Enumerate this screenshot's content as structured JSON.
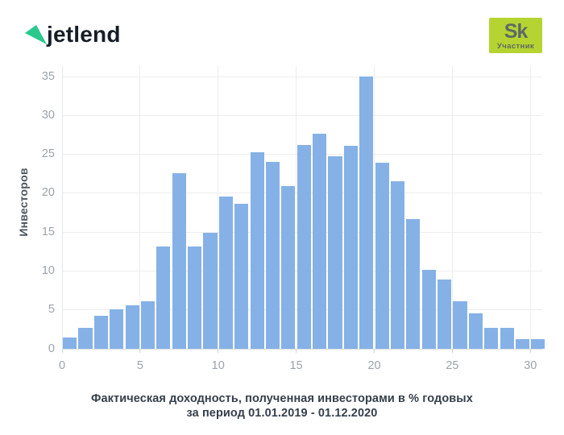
{
  "header": {
    "logo_text": "jetlend",
    "sk_badge": {
      "top": "Sk",
      "bottom": "Участник"
    }
  },
  "colors": {
    "bar": "#85b1e6",
    "grid": "#ededef",
    "axis_line": "#d9dee3",
    "yaxis_line": "#e4e8ec",
    "tick_stub": "#ccd2d8",
    "tick_label": "#9ba3ab",
    "ylabel": "#4b5560",
    "caption": "#343f4b",
    "logo_text": "#151e28",
    "logo_triangle": "#29c98d",
    "sk_badge_bg": "#b5d431",
    "sk_badge_text": "#5e6a64"
  },
  "chart_data": {
    "type": "bar",
    "title": "",
    "xlabel_line1": "Фактическая доходность, полученная инвесторами в % годовых",
    "xlabel_line2": "за период 01.01.2019 - 01.12.2020",
    "ylabel": "Инвесторов",
    "bin_start": 0,
    "bin_width": 1,
    "values": [
      1.5,
      2.7,
      4.2,
      5.1,
      5.6,
      6.1,
      13.2,
      22.6,
      13.2,
      14.9,
      19.6,
      18.6,
      25.3,
      24.0,
      20.9,
      26.2,
      27.6,
      24.8,
      26.1,
      35.0,
      23.9,
      21.5,
      16.7,
      10.1,
      8.9,
      6.1,
      4.6,
      2.7,
      2.7,
      1.2,
      1.2
    ],
    "x_ticks": [
      0,
      5,
      10,
      15,
      20,
      25,
      30
    ],
    "y_ticks": [
      0,
      5,
      10,
      15,
      20,
      25,
      30,
      35
    ],
    "xlim": [
      0,
      30.76
    ],
    "ylim": [
      0,
      36.35
    ],
    "grid": true,
    "legend": false
  }
}
